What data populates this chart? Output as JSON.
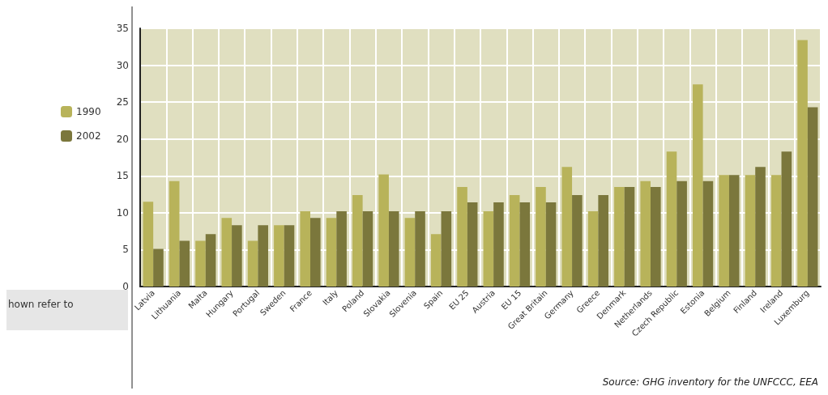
{
  "chart_data": {
    "type": "bar",
    "categories": [
      "Latvia",
      "Lithuania",
      "Malta",
      "Hungary",
      "Portugal",
      "Sweden",
      "France",
      "Italy",
      "Poland",
      "Slovakia",
      "Slovenia",
      "Spain",
      "EU 25",
      "Austria",
      "EU 15",
      "Great Britain",
      "Germany",
      "Greece",
      "Denmark",
      "Netherlands",
      "Czech Republic",
      "Estonia",
      "Belgium",
      "Finland",
      "Ireland",
      "Luxemburg"
    ],
    "series": [
      {
        "name": "1990",
        "color": "#b8b35a",
        "values": [
          11.5,
          14.3,
          6.2,
          9.3,
          6.2,
          8.3,
          10.2,
          9.3,
          12.4,
          15.2,
          9.3,
          7.1,
          13.5,
          10.2,
          12.4,
          13.5,
          16.2,
          10.2,
          13.5,
          14.3,
          18.3,
          27.4,
          15.1,
          15.1,
          15.1,
          33.4
        ]
      },
      {
        "name": "2002",
        "color": "#7b773c",
        "values": [
          5.1,
          6.2,
          7.1,
          8.3,
          8.3,
          8.3,
          9.3,
          10.2,
          10.2,
          10.2,
          10.2,
          10.2,
          11.4,
          11.4,
          11.4,
          11.4,
          12.4,
          12.4,
          13.5,
          13.5,
          14.3,
          14.3,
          15.1,
          16.2,
          18.3,
          24.3
        ]
      }
    ],
    "ylim": [
      0,
      35
    ],
    "yticks": [
      0,
      5,
      10,
      15,
      20,
      25,
      30,
      35
    ],
    "grid": true,
    "legend": "left",
    "annotations": [
      "hown refer to",
      "Source: GHG inventory for the UNFCCC, EEA"
    ]
  }
}
